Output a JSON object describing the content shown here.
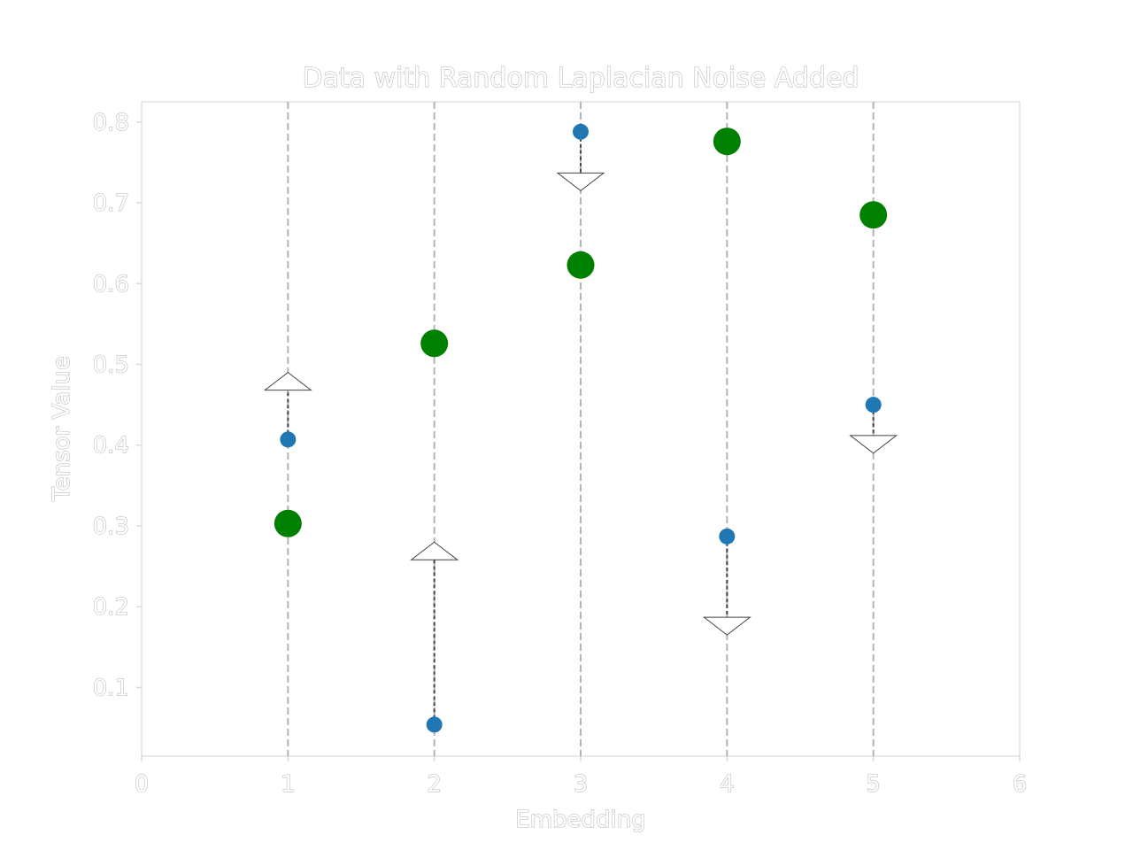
{
  "chart_data": {
    "type": "scatter",
    "title": "Data with Random Laplacian Noise Added",
    "xlabel": "Embedding",
    "ylabel": "Tensor Value",
    "xlim": [
      0,
      6
    ],
    "ylim": [
      0.015,
      0.825
    ],
    "xticks": [
      "0",
      "1",
      "2",
      "3",
      "4",
      "5",
      "6"
    ],
    "yticks": [
      "0.1",
      "0.2",
      "0.3",
      "0.4",
      "0.5",
      "0.6",
      "0.7",
      "0.8"
    ],
    "grid": "vertical dashed lines at each embedding",
    "x": [
      1,
      2,
      3,
      4,
      5
    ],
    "series": [
      {
        "values": [
          0.407,
          0.054,
          0.788,
          0.287,
          0.45
        ],
        "color": "#1f77b4",
        "marker": "small-circle"
      },
      {
        "values": [
          0.303,
          0.526,
          0.623,
          0.776,
          0.685
        ],
        "color": "#008000",
        "marker": "large-circle"
      }
    ],
    "arrows": [
      {
        "x": 1,
        "from": 0.407,
        "to": 0.49
      },
      {
        "x": 2,
        "from": 0.054,
        "to": 0.28
      },
      {
        "x": 3,
        "from": 0.788,
        "to": 0.715
      },
      {
        "x": 4,
        "from": 0.287,
        "to": 0.165
      },
      {
        "x": 5,
        "from": 0.45,
        "to": 0.39
      }
    ]
  }
}
